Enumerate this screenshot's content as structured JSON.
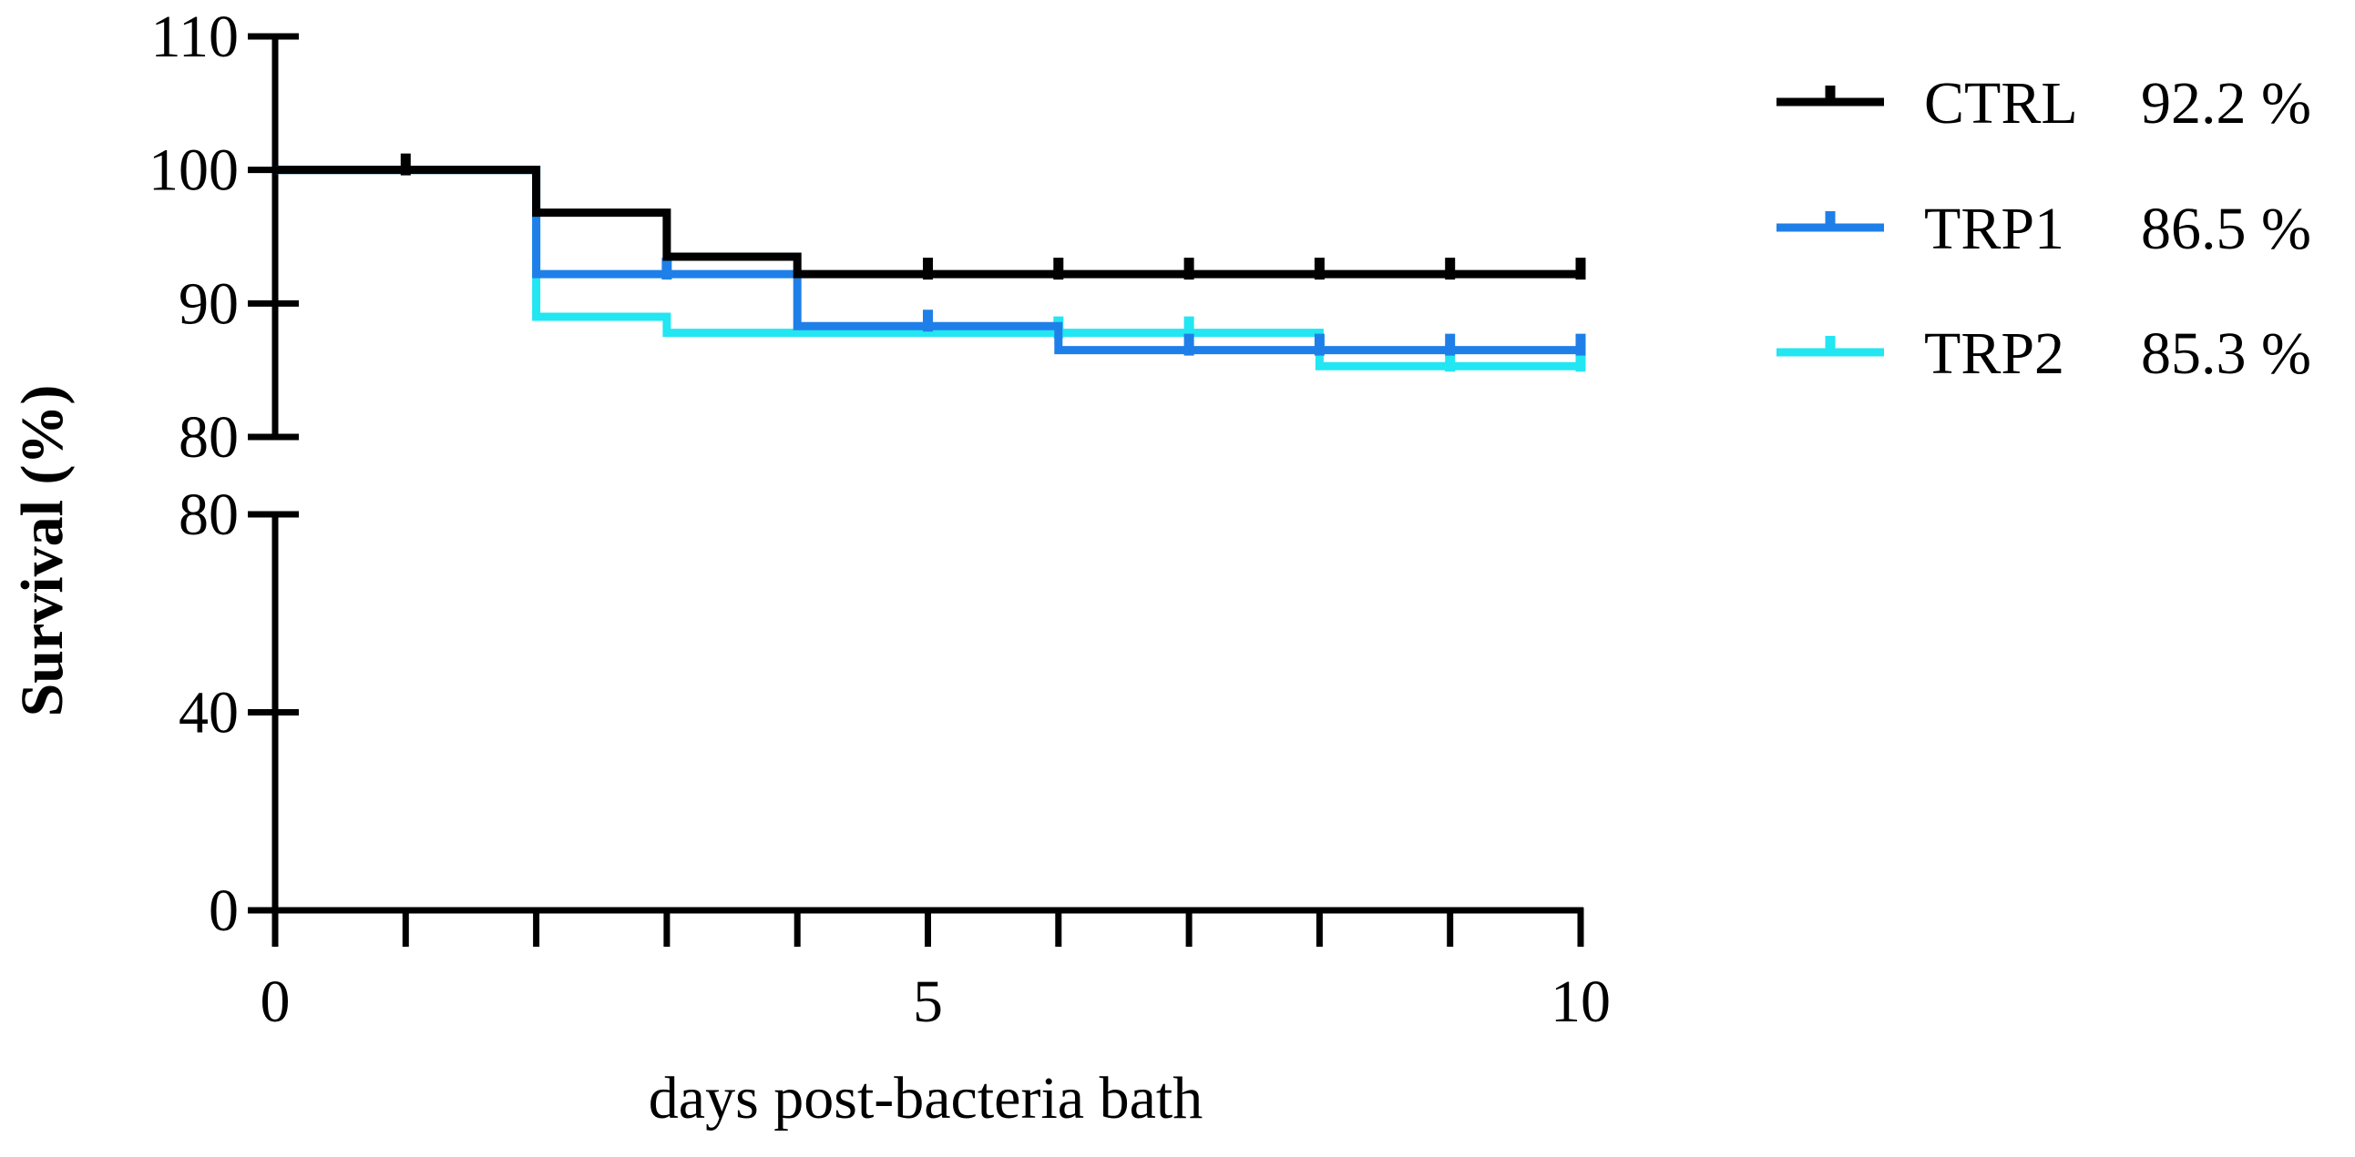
{
  "chart_data": {
    "type": "line",
    "subtype": "kaplan-meier-step",
    "xlabel": "days post-bacteria bath",
    "ylabel": "Survival (%)",
    "xlim": [
      0,
      10
    ],
    "x_ticks": [
      "0",
      "5",
      "10"
    ],
    "y_axis_break": true,
    "y_upper_segment": {
      "range": [
        80,
        110
      ],
      "ticks": [
        "80",
        "90",
        "100",
        "110"
      ]
    },
    "y_lower_segment": {
      "range": [
        0,
        80
      ],
      "ticks": [
        "0",
        "40",
        "80"
      ]
    },
    "grid": false,
    "legend_position": "right",
    "series": [
      {
        "name": "CTRL",
        "legend_value": "92.2 %",
        "color": "#000000",
        "steps": [
          [
            0,
            100
          ],
          [
            2,
            96.8
          ],
          [
            3,
            93.5
          ],
          [
            4,
            92.2
          ],
          [
            10,
            92.2
          ]
        ],
        "censor_marks": [
          1,
          5,
          6,
          7,
          8,
          9,
          10
        ]
      },
      {
        "name": "TRP1",
        "legend_value": "86.5 %",
        "color": "#1f7fe8",
        "steps": [
          [
            0,
            100
          ],
          [
            2,
            92.2
          ],
          [
            4,
            88.3
          ],
          [
            6,
            86.5
          ],
          [
            10,
            86.5
          ]
        ],
        "censor_marks": [
          3,
          5,
          7,
          8,
          9,
          10
        ]
      },
      {
        "name": "TRP2",
        "legend_value": "85.3 %",
        "color": "#22e6f2",
        "steps": [
          [
            0,
            100
          ],
          [
            2,
            89.0
          ],
          [
            3,
            87.8
          ],
          [
            8,
            85.3
          ],
          [
            10,
            85.3
          ]
        ],
        "censor_marks": [
          6,
          7,
          9,
          10
        ]
      }
    ]
  }
}
